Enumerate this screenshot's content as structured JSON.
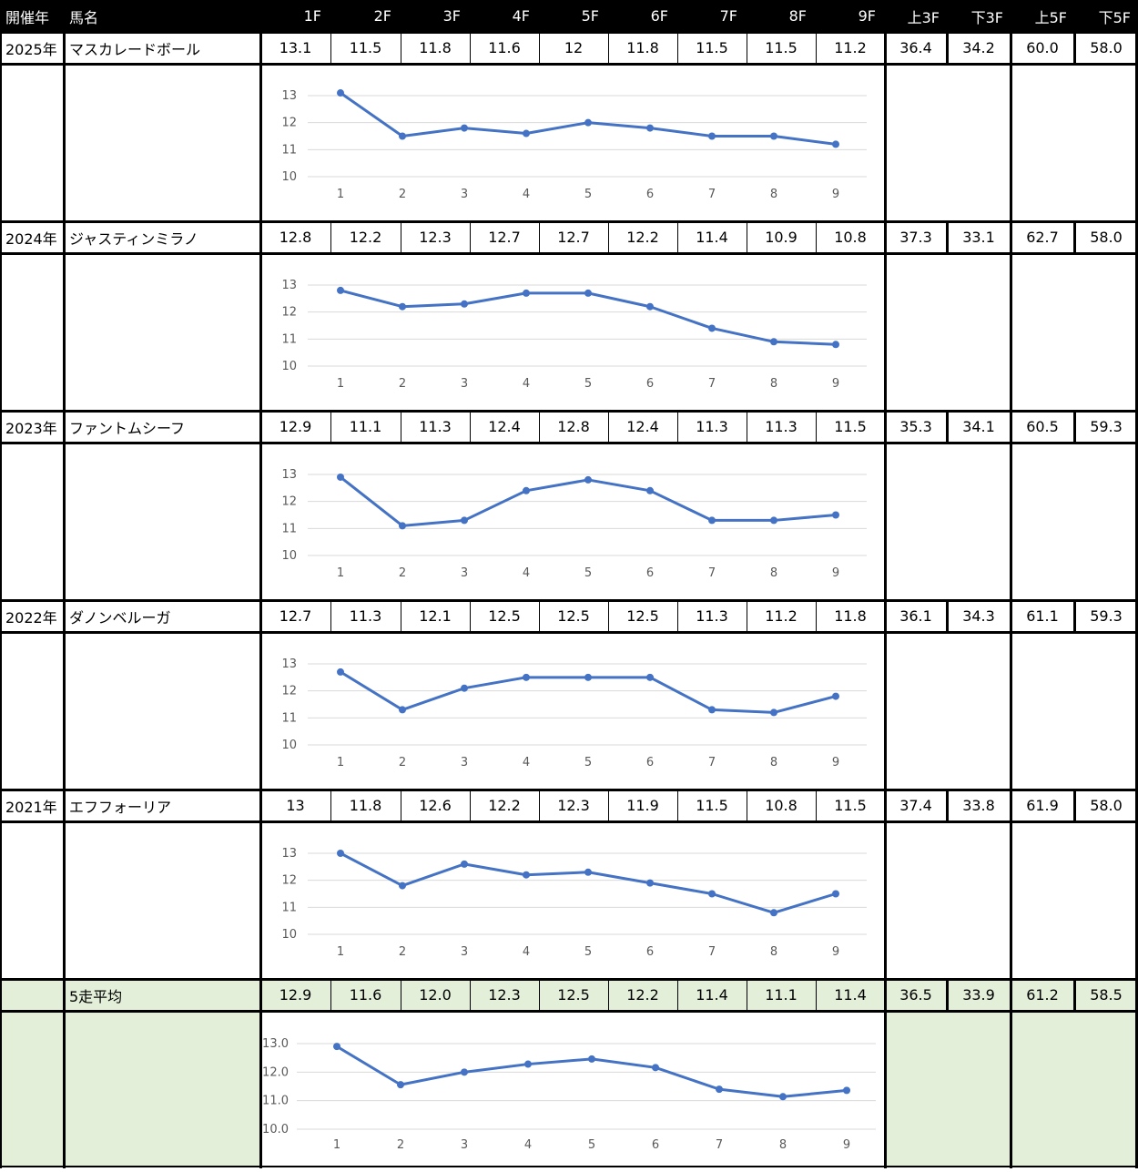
{
  "header": {
    "year_label": "開催年",
    "name_label": "馬名",
    "lap_labels": [
      "1F",
      "2F",
      "3F",
      "4F",
      "5F",
      "6F",
      "7F",
      "8F",
      "9F"
    ],
    "split_labels": [
      "上3F",
      "下3F",
      "上5F",
      "下5F"
    ]
  },
  "rows": [
    {
      "year": "2025年",
      "name": "マスカレードボール",
      "laps": [
        "13.1",
        "11.5",
        "11.8",
        "11.6",
        "12",
        "11.8",
        "11.5",
        "11.5",
        "11.2"
      ],
      "splits": [
        "36.4",
        "34.2",
        "60.0",
        "58.0"
      ]
    },
    {
      "year": "2024年",
      "name": "ジャスティンミラノ",
      "laps": [
        "12.8",
        "12.2",
        "12.3",
        "12.7",
        "12.7",
        "12.2",
        "11.4",
        "10.9",
        "10.8"
      ],
      "splits": [
        "37.3",
        "33.1",
        "62.7",
        "58.0"
      ]
    },
    {
      "year": "2023年",
      "name": "ファントムシーフ",
      "laps": [
        "12.9",
        "11.1",
        "11.3",
        "12.4",
        "12.8",
        "12.4",
        "11.3",
        "11.3",
        "11.5"
      ],
      "splits": [
        "35.3",
        "34.1",
        "60.5",
        "59.3"
      ]
    },
    {
      "year": "2022年",
      "name": "ダノンベルーガ",
      "laps": [
        "12.7",
        "11.3",
        "12.1",
        "12.5",
        "12.5",
        "12.5",
        "11.3",
        "11.2",
        "11.8"
      ],
      "splits": [
        "36.1",
        "34.3",
        "61.1",
        "59.3"
      ]
    },
    {
      "year": "2021年",
      "name": "エフフォーリア",
      "laps": [
        "13",
        "11.8",
        "12.6",
        "12.2",
        "12.3",
        "11.9",
        "11.5",
        "10.8",
        "11.5"
      ],
      "splits": [
        "37.4",
        "33.8",
        "61.9",
        "58.0"
      ]
    }
  ],
  "average": {
    "name": "5走平均",
    "laps": [
      "12.9",
      "11.6",
      "12.0",
      "12.3",
      "12.5",
      "12.2",
      "11.4",
      "11.1",
      "11.4"
    ],
    "splits": [
      "36.5",
      "33.9",
      "61.2",
      "58.5"
    ]
  },
  "colors": {
    "line": "#4472c4",
    "avg_bg": "#e3efd9",
    "header_bg": "#000000",
    "grid": "#d9d9d9"
  },
  "chart_data": [
    {
      "type": "line",
      "x": [
        1,
        2,
        3,
        4,
        5,
        6,
        7,
        8,
        9
      ],
      "y": [
        13.1,
        11.5,
        11.8,
        11.6,
        12,
        11.8,
        11.5,
        11.5,
        11.2
      ],
      "ylim": [
        10,
        13
      ],
      "yticks": [
        "10",
        "11",
        "12",
        "13"
      ],
      "grid": true
    },
    {
      "type": "line",
      "x": [
        1,
        2,
        3,
        4,
        5,
        6,
        7,
        8,
        9
      ],
      "y": [
        12.8,
        12.2,
        12.3,
        12.7,
        12.7,
        12.2,
        11.4,
        10.9,
        10.8
      ],
      "ylim": [
        10,
        13
      ],
      "yticks": [
        "10",
        "11",
        "12",
        "13"
      ],
      "grid": true
    },
    {
      "type": "line",
      "x": [
        1,
        2,
        3,
        4,
        5,
        6,
        7,
        8,
        9
      ],
      "y": [
        12.9,
        11.1,
        11.3,
        12.4,
        12.8,
        12.4,
        11.3,
        11.3,
        11.5
      ],
      "ylim": [
        10,
        13
      ],
      "yticks": [
        "10",
        "11",
        "12",
        "13"
      ],
      "grid": true
    },
    {
      "type": "line",
      "x": [
        1,
        2,
        3,
        4,
        5,
        6,
        7,
        8,
        9
      ],
      "y": [
        12.7,
        11.3,
        12.1,
        12.5,
        12.5,
        12.5,
        11.3,
        11.2,
        11.8
      ],
      "ylim": [
        10,
        13
      ],
      "yticks": [
        "10",
        "11",
        "12",
        "13"
      ],
      "grid": true
    },
    {
      "type": "line",
      "x": [
        1,
        2,
        3,
        4,
        5,
        6,
        7,
        8,
        9
      ],
      "y": [
        13,
        11.8,
        12.6,
        12.2,
        12.3,
        11.9,
        11.5,
        10.8,
        11.5
      ],
      "ylim": [
        10,
        13
      ],
      "yticks": [
        "10",
        "11",
        "12",
        "13"
      ],
      "grid": true
    },
    {
      "type": "line",
      "x": [
        1,
        2,
        3,
        4,
        5,
        6,
        7,
        8,
        9
      ],
      "y": [
        12.9,
        11.56,
        12.0,
        12.28,
        12.46,
        12.16,
        11.4,
        11.14,
        11.36
      ],
      "ylim": [
        10,
        13
      ],
      "yticks": [
        "10.0",
        "11.0",
        "12.0",
        "13.0"
      ],
      "grid": true
    }
  ]
}
